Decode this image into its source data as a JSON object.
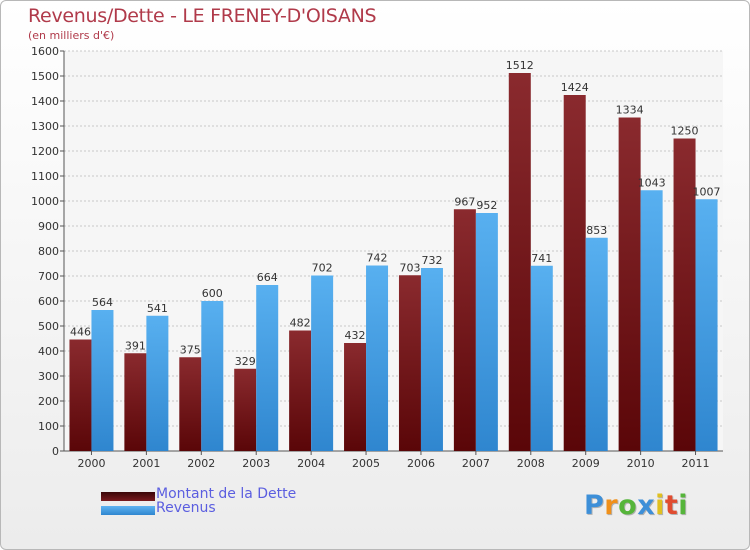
{
  "title": "Revenus/Dette - LE FRENEY-D'OISANS",
  "subtitle": "(en milliers d'€)",
  "logo": {
    "letters": [
      "P",
      "r",
      "o",
      "x",
      "i",
      "t",
      "i"
    ],
    "colors": [
      "#3d8fd8",
      "#f0901a",
      "#55b53a",
      "#3d8fd8",
      "#e0c020",
      "#e04c30",
      "#55b53a"
    ]
  },
  "chart_data": {
    "type": "bar",
    "categories": [
      "2000",
      "2001",
      "2002",
      "2003",
      "2004",
      "2005",
      "2006",
      "2007",
      "2008",
      "2009",
      "2010",
      "2011"
    ],
    "series": [
      {
        "name": "Montant de la Dette",
        "color": "#7a1a1e",
        "values": [
          446,
          391,
          375,
          329,
          482,
          432,
          703,
          967,
          1512,
          1424,
          1334,
          1250
        ]
      },
      {
        "name": "Revenus",
        "color": "#4aa3e8",
        "values": [
          564,
          541,
          600,
          664,
          702,
          742,
          732,
          952,
          741,
          853,
          1043,
          1007
        ]
      }
    ],
    "ylim": [
      0,
      1600
    ],
    "ytick_step": 100,
    "grid": true,
    "legend_placement": "bottom-left"
  }
}
